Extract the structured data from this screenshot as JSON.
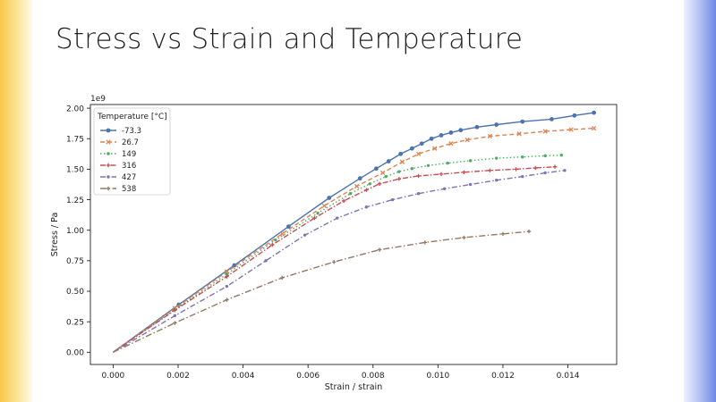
{
  "slide": {
    "title": "Stress vs Strain and Temperature"
  },
  "colors": {
    "left_bar": "#f7c948",
    "right_bar": "#6f87e6"
  },
  "chart_data": {
    "type": "line",
    "title": "",
    "xlabel": "Strain / strain",
    "ylabel": "Stress / Pa",
    "offset_text": "1e9",
    "xlim": [
      -0.0007,
      0.0155
    ],
    "ylim": [
      -0.1,
      2.03
    ],
    "xticks": [
      "0.000",
      "0.002",
      "0.004",
      "0.006",
      "0.008",
      "0.010",
      "0.012",
      "0.014"
    ],
    "xtick_values": [
      0,
      0.002,
      0.004,
      0.006,
      0.008,
      0.01,
      0.012,
      0.014
    ],
    "yticks": [
      "0.00",
      "0.25",
      "0.50",
      "0.75",
      "1.00",
      "1.25",
      "1.50",
      "1.75",
      "2.00"
    ],
    "ytick_values": [
      0,
      0.25,
      0.5,
      0.75,
      1.0,
      1.25,
      1.5,
      1.75,
      2.0
    ],
    "grid": false,
    "legend": {
      "title": "Temperature [°C]",
      "placement": "top-left"
    },
    "series": [
      {
        "name": "-73.3",
        "color": "#4c72b0",
        "dash": "",
        "marker": "circle",
        "points": [
          [
            0,
            0
          ],
          [
            0.00202,
            0.39
          ],
          [
            0.00373,
            0.712
          ],
          [
            0.0054,
            1.03
          ],
          [
            0.00665,
            1.265
          ],
          [
            0.0076,
            1.425
          ],
          [
            0.0081,
            1.505
          ],
          [
            0.00848,
            1.565
          ],
          [
            0.00885,
            1.625
          ],
          [
            0.0092,
            1.67
          ],
          [
            0.0095,
            1.71
          ],
          [
            0.0098,
            1.75
          ],
          [
            0.0101,
            1.778
          ],
          [
            0.0104,
            1.8
          ],
          [
            0.0107,
            1.82
          ],
          [
            0.0112,
            1.845
          ],
          [
            0.0118,
            1.865
          ],
          [
            0.0126,
            1.89
          ],
          [
            0.0135,
            1.91
          ],
          [
            0.0142,
            1.94
          ],
          [
            0.0148,
            1.963
          ]
        ]
      },
      {
        "name": "26.7",
        "color": "#dd8452",
        "dash": "5,3",
        "marker": "x",
        "points": [
          [
            0,
            0
          ],
          [
            0.0019,
            0.36
          ],
          [
            0.0035,
            0.66
          ],
          [
            0.0052,
            0.97
          ],
          [
            0.0065,
            1.2
          ],
          [
            0.0075,
            1.36
          ],
          [
            0.0083,
            1.47
          ],
          [
            0.0089,
            1.56
          ],
          [
            0.0094,
            1.625
          ],
          [
            0.0099,
            1.67
          ],
          [
            0.0104,
            1.71
          ],
          [
            0.0109,
            1.74
          ],
          [
            0.0116,
            1.77
          ],
          [
            0.0125,
            1.79
          ],
          [
            0.0133,
            1.81
          ],
          [
            0.0141,
            1.825
          ],
          [
            0.0148,
            1.835
          ]
        ]
      },
      {
        "name": "149",
        "color": "#55a868",
        "dash": "1.5,2.5",
        "marker": "circle-small",
        "points": [
          [
            0,
            0
          ],
          [
            0.0019,
            0.35
          ],
          [
            0.0035,
            0.64
          ],
          [
            0.005,
            0.92
          ],
          [
            0.0063,
            1.14
          ],
          [
            0.0073,
            1.3
          ],
          [
            0.0079,
            1.38
          ],
          [
            0.0084,
            1.44
          ],
          [
            0.0088,
            1.48
          ],
          [
            0.0092,
            1.505
          ],
          [
            0.0097,
            1.53
          ],
          [
            0.0103,
            1.55
          ],
          [
            0.011,
            1.57
          ],
          [
            0.0118,
            1.59
          ],
          [
            0.0126,
            1.6
          ],
          [
            0.0133,
            1.61
          ],
          [
            0.0138,
            1.615
          ]
        ]
      },
      {
        "name": "316",
        "color": "#c44e52",
        "dash": "6,2,1.5,2",
        "marker": "plus",
        "points": [
          [
            0,
            0
          ],
          [
            0.0019,
            0.345
          ],
          [
            0.0035,
            0.62
          ],
          [
            0.0049,
            0.88
          ],
          [
            0.0062,
            1.1
          ],
          [
            0.0071,
            1.24
          ],
          [
            0.0078,
            1.33
          ],
          [
            0.0082,
            1.38
          ],
          [
            0.0088,
            1.42
          ],
          [
            0.0094,
            1.445
          ],
          [
            0.0101,
            1.46
          ],
          [
            0.0108,
            1.475
          ],
          [
            0.0116,
            1.49
          ],
          [
            0.0124,
            1.5
          ],
          [
            0.013,
            1.51
          ],
          [
            0.0136,
            1.52
          ]
        ]
      },
      {
        "name": "427",
        "color": "#8172b3",
        "dash": "6,2.5,1.5,2.5",
        "marker": "circle-small",
        "points": [
          [
            0,
            0
          ],
          [
            0.0019,
            0.3
          ],
          [
            0.0035,
            0.54
          ],
          [
            0.0047,
            0.75
          ],
          [
            0.0059,
            0.96
          ],
          [
            0.0069,
            1.1
          ],
          [
            0.0078,
            1.19
          ],
          [
            0.0086,
            1.25
          ],
          [
            0.0094,
            1.3
          ],
          [
            0.0102,
            1.34
          ],
          [
            0.011,
            1.375
          ],
          [
            0.0118,
            1.41
          ],
          [
            0.0126,
            1.44
          ],
          [
            0.0133,
            1.47
          ],
          [
            0.0139,
            1.49
          ]
        ]
      },
      {
        "name": "538",
        "color": "#937860",
        "dash": "7,2.5,1.5,2.5",
        "marker": "plus",
        "points": [
          [
            0,
            0
          ],
          [
            0.0019,
            0.24
          ],
          [
            0.0035,
            0.43
          ],
          [
            0.0052,
            0.61
          ],
          [
            0.0068,
            0.74
          ],
          [
            0.0082,
            0.84
          ],
          [
            0.0096,
            0.9
          ],
          [
            0.0108,
            0.94
          ],
          [
            0.012,
            0.97
          ],
          [
            0.0128,
            0.99
          ]
        ]
      }
    ]
  }
}
